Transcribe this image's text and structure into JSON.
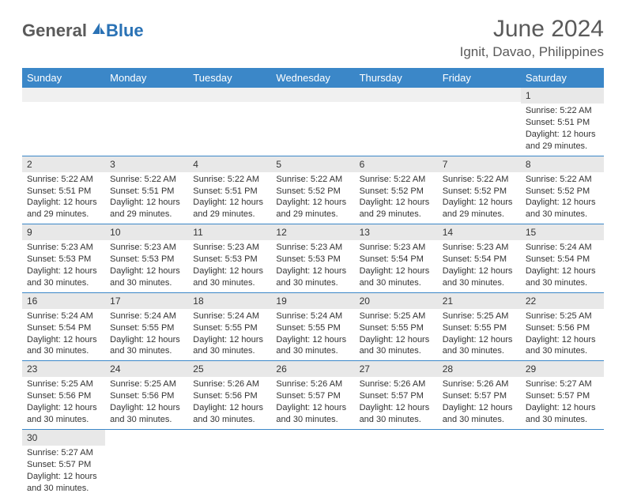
{
  "logo": {
    "general": "General",
    "blue": "Blue"
  },
  "title": "June 2024",
  "location": "Ignit, Davao, Philippines",
  "header_bg": "#3b87c8",
  "daynum_bg": "#e8e8e8",
  "columns": [
    "Sunday",
    "Monday",
    "Tuesday",
    "Wednesday",
    "Thursday",
    "Friday",
    "Saturday"
  ],
  "weeks": [
    [
      null,
      null,
      null,
      null,
      null,
      null,
      {
        "n": "1",
        "sunrise": "Sunrise: 5:22 AM",
        "sunset": "Sunset: 5:51 PM",
        "daylight": "Daylight: 12 hours and 29 minutes."
      }
    ],
    [
      {
        "n": "2",
        "sunrise": "Sunrise: 5:22 AM",
        "sunset": "Sunset: 5:51 PM",
        "daylight": "Daylight: 12 hours and 29 minutes."
      },
      {
        "n": "3",
        "sunrise": "Sunrise: 5:22 AM",
        "sunset": "Sunset: 5:51 PM",
        "daylight": "Daylight: 12 hours and 29 minutes."
      },
      {
        "n": "4",
        "sunrise": "Sunrise: 5:22 AM",
        "sunset": "Sunset: 5:51 PM",
        "daylight": "Daylight: 12 hours and 29 minutes."
      },
      {
        "n": "5",
        "sunrise": "Sunrise: 5:22 AM",
        "sunset": "Sunset: 5:52 PM",
        "daylight": "Daylight: 12 hours and 29 minutes."
      },
      {
        "n": "6",
        "sunrise": "Sunrise: 5:22 AM",
        "sunset": "Sunset: 5:52 PM",
        "daylight": "Daylight: 12 hours and 29 minutes."
      },
      {
        "n": "7",
        "sunrise": "Sunrise: 5:22 AM",
        "sunset": "Sunset: 5:52 PM",
        "daylight": "Daylight: 12 hours and 29 minutes."
      },
      {
        "n": "8",
        "sunrise": "Sunrise: 5:22 AM",
        "sunset": "Sunset: 5:52 PM",
        "daylight": "Daylight: 12 hours and 30 minutes."
      }
    ],
    [
      {
        "n": "9",
        "sunrise": "Sunrise: 5:23 AM",
        "sunset": "Sunset: 5:53 PM",
        "daylight": "Daylight: 12 hours and 30 minutes."
      },
      {
        "n": "10",
        "sunrise": "Sunrise: 5:23 AM",
        "sunset": "Sunset: 5:53 PM",
        "daylight": "Daylight: 12 hours and 30 minutes."
      },
      {
        "n": "11",
        "sunrise": "Sunrise: 5:23 AM",
        "sunset": "Sunset: 5:53 PM",
        "daylight": "Daylight: 12 hours and 30 minutes."
      },
      {
        "n": "12",
        "sunrise": "Sunrise: 5:23 AM",
        "sunset": "Sunset: 5:53 PM",
        "daylight": "Daylight: 12 hours and 30 minutes."
      },
      {
        "n": "13",
        "sunrise": "Sunrise: 5:23 AM",
        "sunset": "Sunset: 5:54 PM",
        "daylight": "Daylight: 12 hours and 30 minutes."
      },
      {
        "n": "14",
        "sunrise": "Sunrise: 5:23 AM",
        "sunset": "Sunset: 5:54 PM",
        "daylight": "Daylight: 12 hours and 30 minutes."
      },
      {
        "n": "15",
        "sunrise": "Sunrise: 5:24 AM",
        "sunset": "Sunset: 5:54 PM",
        "daylight": "Daylight: 12 hours and 30 minutes."
      }
    ],
    [
      {
        "n": "16",
        "sunrise": "Sunrise: 5:24 AM",
        "sunset": "Sunset: 5:54 PM",
        "daylight": "Daylight: 12 hours and 30 minutes."
      },
      {
        "n": "17",
        "sunrise": "Sunrise: 5:24 AM",
        "sunset": "Sunset: 5:55 PM",
        "daylight": "Daylight: 12 hours and 30 minutes."
      },
      {
        "n": "18",
        "sunrise": "Sunrise: 5:24 AM",
        "sunset": "Sunset: 5:55 PM",
        "daylight": "Daylight: 12 hours and 30 minutes."
      },
      {
        "n": "19",
        "sunrise": "Sunrise: 5:24 AM",
        "sunset": "Sunset: 5:55 PM",
        "daylight": "Daylight: 12 hours and 30 minutes."
      },
      {
        "n": "20",
        "sunrise": "Sunrise: 5:25 AM",
        "sunset": "Sunset: 5:55 PM",
        "daylight": "Daylight: 12 hours and 30 minutes."
      },
      {
        "n": "21",
        "sunrise": "Sunrise: 5:25 AM",
        "sunset": "Sunset: 5:55 PM",
        "daylight": "Daylight: 12 hours and 30 minutes."
      },
      {
        "n": "22",
        "sunrise": "Sunrise: 5:25 AM",
        "sunset": "Sunset: 5:56 PM",
        "daylight": "Daylight: 12 hours and 30 minutes."
      }
    ],
    [
      {
        "n": "23",
        "sunrise": "Sunrise: 5:25 AM",
        "sunset": "Sunset: 5:56 PM",
        "daylight": "Daylight: 12 hours and 30 minutes."
      },
      {
        "n": "24",
        "sunrise": "Sunrise: 5:25 AM",
        "sunset": "Sunset: 5:56 PM",
        "daylight": "Daylight: 12 hours and 30 minutes."
      },
      {
        "n": "25",
        "sunrise": "Sunrise: 5:26 AM",
        "sunset": "Sunset: 5:56 PM",
        "daylight": "Daylight: 12 hours and 30 minutes."
      },
      {
        "n": "26",
        "sunrise": "Sunrise: 5:26 AM",
        "sunset": "Sunset: 5:57 PM",
        "daylight": "Daylight: 12 hours and 30 minutes."
      },
      {
        "n": "27",
        "sunrise": "Sunrise: 5:26 AM",
        "sunset": "Sunset: 5:57 PM",
        "daylight": "Daylight: 12 hours and 30 minutes."
      },
      {
        "n": "28",
        "sunrise": "Sunrise: 5:26 AM",
        "sunset": "Sunset: 5:57 PM",
        "daylight": "Daylight: 12 hours and 30 minutes."
      },
      {
        "n": "29",
        "sunrise": "Sunrise: 5:27 AM",
        "sunset": "Sunset: 5:57 PM",
        "daylight": "Daylight: 12 hours and 30 minutes."
      }
    ],
    [
      {
        "n": "30",
        "sunrise": "Sunrise: 5:27 AM",
        "sunset": "Sunset: 5:57 PM",
        "daylight": "Daylight: 12 hours and 30 minutes."
      },
      null,
      null,
      null,
      null,
      null,
      null
    ]
  ]
}
